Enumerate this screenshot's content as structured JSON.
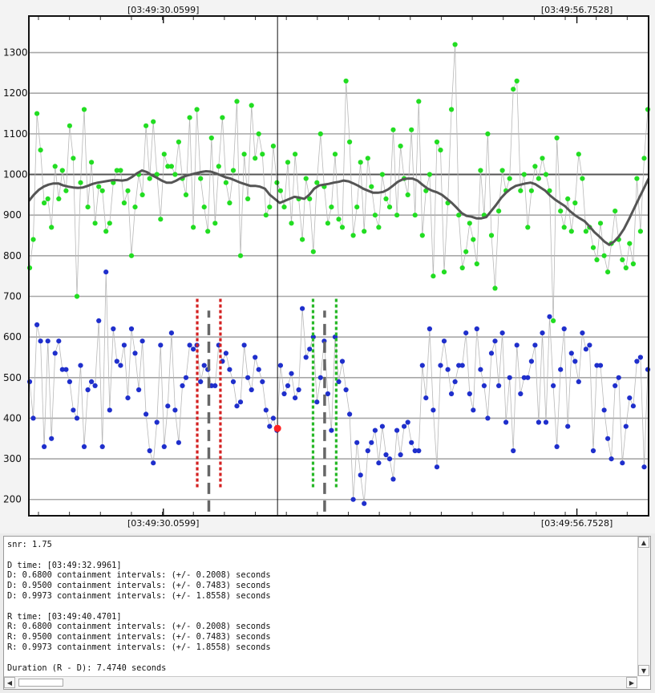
{
  "chart_data": {
    "type": "scatter",
    "title": "",
    "xlabel": "",
    "ylabel": "",
    "ylim": [
      160,
      1390
    ],
    "y_ticks": [
      200,
      300,
      400,
      500,
      600,
      700,
      800,
      900,
      1000,
      1100,
      1200,
      1300
    ],
    "x_time_labels": [
      "[03:49:30.0599]",
      "[03:49:56.7528]"
    ],
    "x_time_seconds": [
      30.0599,
      56.7528
    ],
    "x_range_seconds": [
      21.38,
      61.38
    ],
    "grid": true,
    "reference_line": 1000,
    "cursor_time_seconds": 37.43,
    "series": [
      {
        "color": "#22dd22",
        "values": [
          770,
          840,
          1150,
          1060,
          930,
          940,
          870,
          1020,
          940,
          1010,
          960,
          1120,
          1040,
          700,
          980,
          1160,
          920,
          1030,
          880,
          970,
          960,
          860,
          880,
          980,
          1010,
          1010,
          930,
          960,
          800,
          920,
          1000,
          950,
          1120,
          990,
          1130,
          1000,
          890,
          1050,
          1020,
          1020,
          1000,
          1080,
          990,
          950,
          1140,
          870,
          1160,
          990,
          920,
          860,
          1090,
          880,
          1020,
          1140,
          980,
          930,
          1010,
          1180,
          800,
          1050,
          940,
          1170,
          1040,
          1100,
          1050,
          900,
          920,
          1070,
          980,
          960,
          920,
          1030,
          880,
          1050,
          940,
          840,
          990,
          940,
          810,
          980,
          1100,
          970,
          880,
          920,
          1050,
          890,
          870,
          1230,
          1080,
          850,
          920,
          1030,
          860,
          1040,
          970,
          900,
          870,
          1000,
          940,
          920,
          1110,
          900,
          1070,
          990,
          950,
          1110,
          900,
          1180,
          850,
          960,
          1000,
          750,
          1080,
          1060,
          760,
          930,
          1160,
          1320,
          900,
          770,
          810,
          880,
          840,
          780,
          1010,
          900,
          1100,
          850,
          720,
          910,
          1010,
          960,
          990,
          1210,
          1230,
          960,
          1000,
          870,
          960,
          1020,
          990,
          1040,
          1000,
          960,
          640,
          1090,
          910,
          870,
          940,
          860,
          930,
          1050,
          990,
          860,
          870,
          820,
          790,
          880,
          800,
          760,
          830,
          910,
          840,
          790,
          770,
          830,
          780,
          990,
          860,
          1040,
          1160
        ]
      },
      {
        "color": "#1f2fcc",
        "values": [
          490,
          400,
          630,
          590,
          330,
          590,
          350,
          560,
          590,
          520,
          520,
          490,
          420,
          400,
          530,
          330,
          470,
          490,
          480,
          640,
          330,
          760,
          420,
          620,
          540,
          530,
          580,
          450,
          620,
          560,
          470,
          590,
          410,
          320,
          290,
          390,
          580,
          330,
          430,
          610,
          420,
          340,
          480,
          500,
          580,
          570,
          580,
          490,
          530,
          520,
          480,
          480,
          580,
          540,
          560,
          520,
          490,
          430,
          440,
          580,
          500,
          470,
          550,
          520,
          490,
          420,
          380,
          400,
          370,
          530,
          460,
          480,
          510,
          450,
          470,
          670,
          550,
          570,
          600,
          440,
          500,
          590,
          460,
          370,
          600,
          490,
          540,
          470,
          410,
          200,
          340,
          260,
          190,
          320,
          340,
          370,
          290,
          380,
          310,
          300,
          250,
          370,
          310,
          380,
          390,
          340,
          320,
          320,
          530,
          450,
          620,
          420,
          280,
          530,
          590,
          520,
          460,
          490,
          530,
          530,
          610,
          460,
          420,
          620,
          520,
          480,
          400,
          560,
          590,
          480,
          610,
          390,
          500,
          320,
          580,
          460,
          500,
          500,
          540,
          580,
          390,
          610,
          390,
          650,
          480,
          330,
          520,
          620,
          380,
          560,
          540,
          490,
          610,
          570,
          580,
          320,
          530,
          530,
          420,
          350,
          300,
          480,
          500,
          290,
          380,
          450,
          430,
          540,
          550,
          280,
          520
        ]
      }
    ],
    "smooth_values": [
      935,
      950,
      962,
      970,
      975,
      978,
      978,
      973,
      970,
      968,
      967,
      968,
      972,
      977,
      980,
      982,
      984,
      986,
      986,
      985,
      987,
      994,
      1003,
      1010,
      1006,
      998,
      992,
      985,
      980,
      980,
      985,
      992,
      997,
      1000,
      1003,
      1006,
      1008,
      1007,
      1003,
      998,
      993,
      990,
      985,
      980,
      976,
      972,
      972,
      970,
      965,
      950,
      940,
      930,
      935,
      940,
      945,
      943,
      940,
      950,
      965,
      973,
      975,
      977,
      980,
      982,
      985,
      983,
      978,
      972,
      965,
      960,
      955,
      955,
      957,
      963,
      972,
      982,
      988,
      990,
      990,
      985,
      975,
      966,
      960,
      956,
      950,
      940,
      930,
      918,
      905,
      898,
      896,
      892,
      892,
      895,
      910,
      925,
      942,
      955,
      965,
      972,
      975,
      978,
      980,
      976,
      968,
      960,
      948,
      938,
      930,
      922,
      910,
      900,
      892,
      885,
      872,
      858,
      847,
      835,
      827,
      835,
      848,
      866,
      890,
      915,
      940,
      965,
      990
    ],
    "d_time_seconds": 32.9961,
    "r_time_seconds": 40.4701,
    "d_interval_seconds": 0.7483,
    "r_interval_seconds": 0.7483,
    "d_interval_range": [
      230,
      700
    ],
    "r_interval_range": [
      230,
      700
    ],
    "marker_range": [
      170,
      665
    ],
    "detection_point": {
      "t": 37.43,
      "y": 375,
      "color": "#ff2222"
    }
  },
  "log": {
    "lines": [
      "snr: 1.75",
      "",
      "D time: [03:49:32.9961]",
      "D: 0.6800 containment intervals: (+/- 0.2008) seconds",
      "D: 0.9500 containment intervals: (+/- 0.7483) seconds",
      "D: 0.9973 containment intervals: (+/- 1.8558) seconds",
      "",
      "R time: [03:49:40.4701]",
      "R: 0.6800 containment intervals: (+/- 0.2008) seconds",
      "R: 0.9500 containment intervals: (+/- 0.7483) seconds",
      "R: 0.9973 containment intervals: (+/- 1.8558) seconds",
      "",
      "Duration (R - D): 7.4740 seconds"
    ],
    "scroll_up_icon": "triangle-up",
    "scroll_down_icon": "triangle-down",
    "scroll_left_icon": "triangle-left",
    "scroll_right_icon": "triangle-right"
  }
}
